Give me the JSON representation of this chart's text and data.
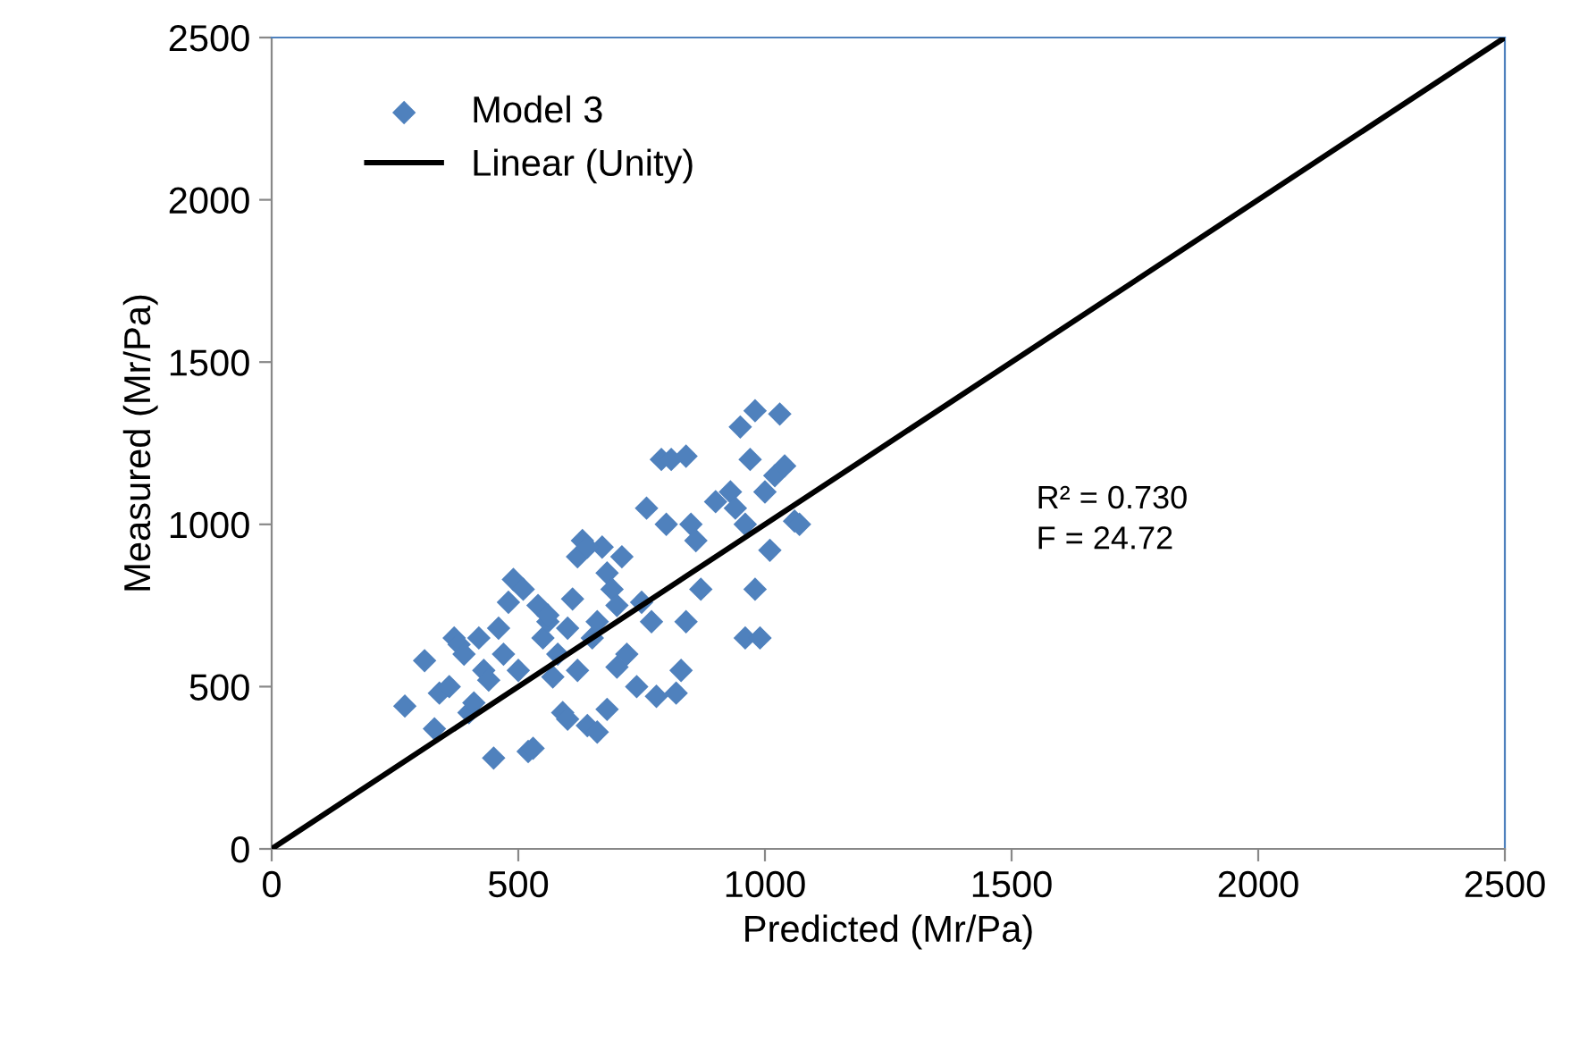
{
  "chart_data": {
    "type": "scatter",
    "xlabel": "Predicted (Mr/Pa)",
    "ylabel": "Measured (Mr/Pa)",
    "xlim": [
      0,
      2500
    ],
    "ylim": [
      0,
      2500
    ],
    "xticks": [
      0,
      500,
      1000,
      1500,
      2000,
      2500
    ],
    "yticks": [
      0,
      500,
      1000,
      1500,
      2000,
      2500
    ],
    "grid": false,
    "legend": "top left",
    "annotations": [
      "R² = 0.730",
      "F = 24.72"
    ],
    "series": [
      {
        "name": "Model 3",
        "marker": "diamond",
        "color": "#4f81bd",
        "x": [
          270,
          310,
          330,
          340,
          360,
          370,
          380,
          390,
          400,
          410,
          420,
          430,
          440,
          450,
          460,
          470,
          480,
          490,
          500,
          510,
          520,
          530,
          540,
          550,
          560,
          570,
          580,
          590,
          600,
          610,
          620,
          620,
          630,
          640,
          650,
          660,
          660,
          670,
          680,
          680,
          690,
          700,
          700,
          710,
          720,
          740,
          760,
          770,
          780,
          790,
          800,
          810,
          820,
          830,
          840,
          840,
          850,
          860,
          870,
          930,
          940,
          950,
          960,
          970,
          980,
          980,
          990,
          1000,
          1010,
          1020,
          1030,
          1040,
          1060,
          1070,
          960,
          560,
          600,
          750,
          900,
          640
        ],
        "values": [
          440,
          580,
          370,
          480,
          500,
          650,
          630,
          600,
          420,
          450,
          650,
          550,
          520,
          280,
          680,
          600,
          760,
          830,
          550,
          800,
          300,
          310,
          750,
          650,
          700,
          530,
          600,
          420,
          400,
          770,
          900,
          550,
          950,
          380,
          650,
          700,
          360,
          930,
          850,
          430,
          800,
          560,
          750,
          900,
          600,
          500,
          1050,
          700,
          470,
          1200,
          1000,
          1200,
          480,
          550,
          1210,
          700,
          1000,
          950,
          800,
          1100,
          1050,
          1300,
          650,
          1200,
          800,
          1350,
          650,
          1100,
          920,
          1150,
          1340,
          1180,
          1010,
          1000,
          1000,
          720,
          680,
          760,
          1070,
          930
        ]
      },
      {
        "name": "Linear (Unity)",
        "type": "line",
        "marker": "none",
        "line_style": "solid",
        "color": "#000000",
        "x": [
          0,
          2500
        ],
        "values": [
          0,
          2500
        ]
      }
    ]
  }
}
